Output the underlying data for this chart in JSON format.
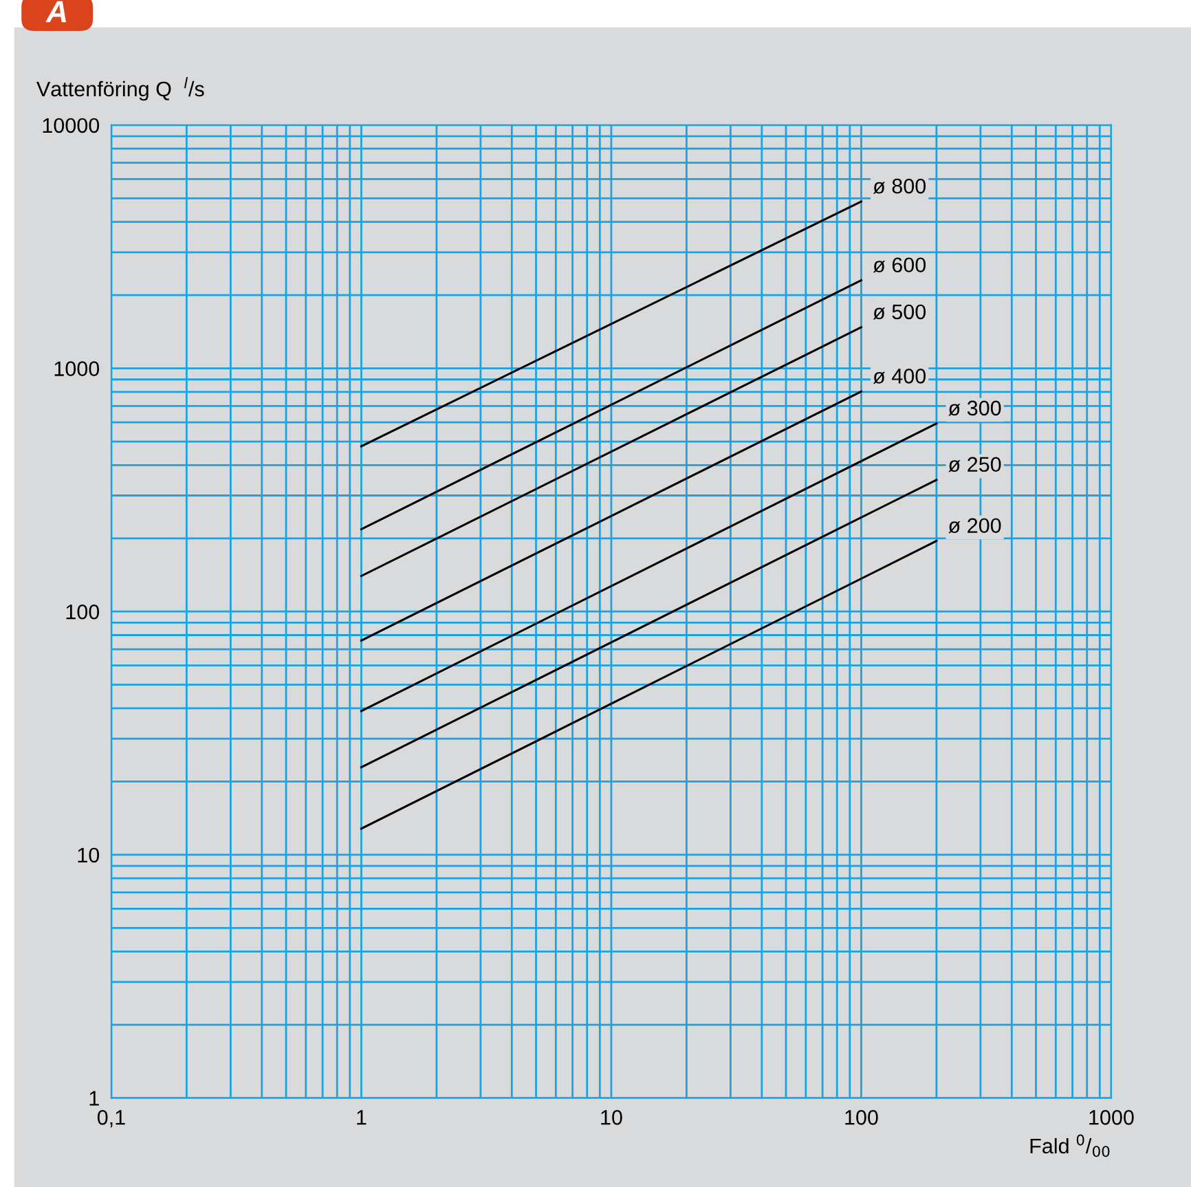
{
  "chart_data": {
    "type": "line",
    "title": "A",
    "ylabel": "Vattenföring Q  $^{l}$/s",
    "xlabel": "Fald $^{0}$/$_{00}$",
    "log": "xy",
    "xlim": [
      0.1,
      1000
    ],
    "ylim": [
      1,
      10000
    ],
    "xticks": [
      {
        "value": 0.1,
        "label": "0,1"
      },
      1,
      10,
      100,
      1000
    ],
    "yticks": [
      1,
      10,
      100,
      1000,
      10000
    ],
    "grid": true,
    "series": [
      {
        "name": "ø 800",
        "color": "#000000",
        "x": [
          1,
          100
        ],
        "values": [
          478,
          4850
        ]
      },
      {
        "name": "ø 600",
        "color": "#000000",
        "x": [
          1,
          100
        ],
        "values": [
          218,
          2300
        ]
      },
      {
        "name": "ø 500",
        "color": "#000000",
        "x": [
          1,
          100
        ],
        "values": [
          140,
          1475
        ]
      },
      {
        "name": "ø 400",
        "color": "#000000",
        "x": [
          1,
          100
        ],
        "values": [
          76,
          803
        ]
      },
      {
        "name": "ø 300",
        "color": "#000000",
        "x": [
          1,
          200
        ],
        "values": [
          39,
          593
        ]
      },
      {
        "name": "ø 250",
        "color": "#000000",
        "x": [
          1,
          200
        ],
        "values": [
          22.9,
          348
        ]
      },
      {
        "name": "ø 200",
        "color": "#000000",
        "x": [
          1,
          200
        ],
        "values": [
          12.8,
          195
        ]
      }
    ]
  }
}
